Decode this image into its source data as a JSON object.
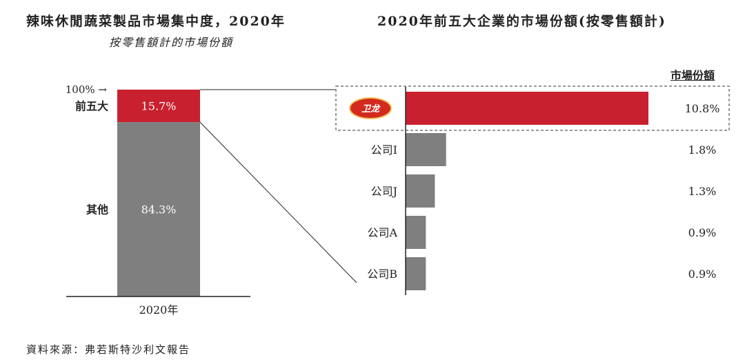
{
  "chart_data": [
    {
      "type": "bar",
      "subtype": "stacked-100",
      "title": "辣味休閒蔬菜製品市場集中度，2020年",
      "subtitle": "按零售額計的市場份額",
      "categories": [
        "2020年"
      ],
      "top_marker": "100% →",
      "segments": [
        {
          "name": "前五大",
          "value": 15.7,
          "label": "15.7%",
          "color": "#c8202f",
          "text_color": "#ffffff"
        },
        {
          "name": "其他",
          "value": 84.3,
          "label": "84.3%",
          "color": "#7f7f7f",
          "text_color": "#ffffff"
        }
      ],
      "ylim": [
        0,
        100
      ]
    },
    {
      "type": "bar",
      "orientation": "horizontal",
      "title": "2020年前五大企業的市場份額(按零售額計)",
      "value_header": "市場份額",
      "xlim": [
        0,
        10.8
      ],
      "bars": [
        {
          "name": "卫龙",
          "logo_text": "卫龙",
          "value": 10.8,
          "label": "10.8%",
          "color": "#c8202f",
          "highlight": true
        },
        {
          "name": "公司I",
          "value": 1.8,
          "label": "1.8%",
          "color": "#7f7f7f"
        },
        {
          "name": "公司J",
          "value": 1.3,
          "label": "1.3%",
          "color": "#7f7f7f"
        },
        {
          "name": "公司A",
          "value": 0.9,
          "label": "0.9%",
          "color": "#7f7f7f"
        },
        {
          "name": "公司B",
          "value": 0.9,
          "label": "0.9%",
          "color": "#7f7f7f"
        }
      ]
    }
  ],
  "source": "資料來源：弗若斯特沙利文報告",
  "colors": {
    "accent": "#c8202f",
    "neutral": "#7f7f7f",
    "axis": "#222222"
  }
}
